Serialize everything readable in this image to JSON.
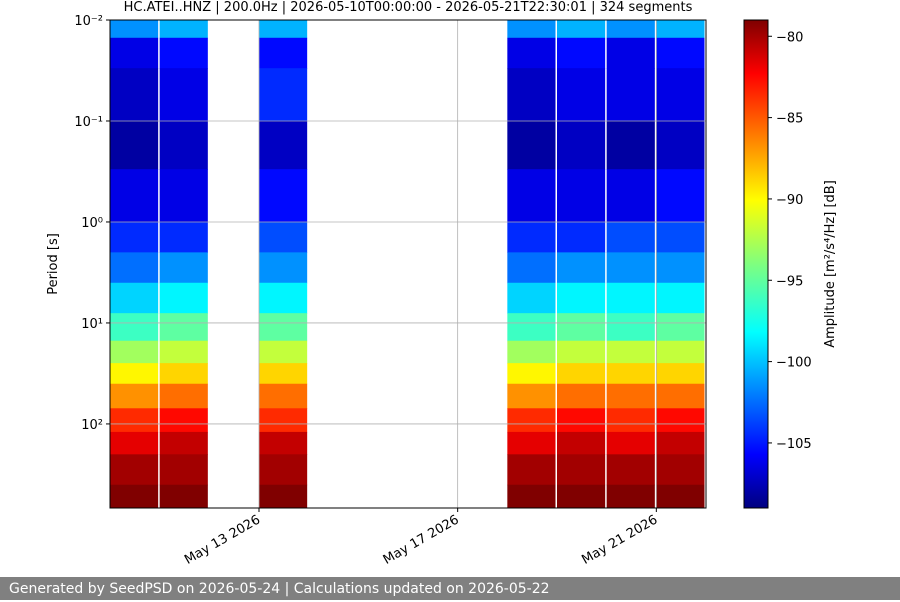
{
  "chart_data": {
    "type": "spectrogram",
    "title": "HC.ATEI..HNZ | 200.0Hz | 2026-05-10T00:00:00 - 2026-05-21T22:30:01 | 324 segments",
    "ylabel": "Period [s]",
    "colorbar_label": "Amplitude [m²/s⁴/Hz] [dB]",
    "x": [
      "2026-05-10",
      "2026-05-11",
      "2026-05-13",
      "2026-05-18",
      "2026-05-19",
      "2026-05-20",
      "2026-05-21"
    ],
    "xlim": [
      "2026-05-10",
      "2026-05-22"
    ],
    "xticks": [
      {
        "value": "2026-05-13",
        "label": "May 13 2026"
      },
      {
        "value": "2026-05-17",
        "label": "May 17 2026"
      },
      {
        "value": "2026-05-21",
        "label": "May 21 2026"
      }
    ],
    "yedges": [
      0.01,
      0.015,
      0.03,
      0.1,
      0.3,
      1,
      2,
      4,
      8,
      15,
      25,
      40,
      70,
      120,
      200,
      400,
      680
    ],
    "ylim": [
      0.01,
      680
    ],
    "ylog": true,
    "yinverted": true,
    "yticks": [
      {
        "value": 0.01,
        "label": "10⁻²"
      },
      {
        "value": 0.1,
        "label": "10⁻¹"
      },
      {
        "value": 1,
        "label": "10⁰"
      },
      {
        "value": 10,
        "label": "10¹"
      },
      {
        "value": 100,
        "label": "10²"
      }
    ],
    "z": [
      [
        -101,
        -106,
        -107,
        -108,
        -106,
        -104,
        -102,
        -99,
        -96,
        -93,
        -90,
        -87,
        -84,
        -82,
        -80,
        -79
      ],
      [
        -100,
        -105,
        -106,
        -107,
        -106,
        -104,
        -101,
        -98,
        -95,
        -92,
        -89,
        -86,
        -83,
        -81,
        -80,
        -79
      ],
      [
        -100,
        -105,
        -104,
        -107,
        -105,
        -103,
        -101,
        -98,
        -95,
        -92,
        -89,
        -86,
        -84,
        -81,
        -80,
        -79
      ],
      [
        -101,
        -106,
        -107,
        -108,
        -106,
        -104,
        -102,
        -99,
        -96,
        -93,
        -90,
        -87,
        -84,
        -82,
        -80,
        -79
      ],
      [
        -100,
        -105,
        -106,
        -107,
        -106,
        -104,
        -101,
        -98,
        -95,
        -92,
        -89,
        -86,
        -83,
        -81,
        -80,
        -79
      ],
      [
        -101,
        -106,
        -106,
        -108,
        -106,
        -103,
        -101,
        -98,
        -96,
        -92,
        -89,
        -86,
        -84,
        -82,
        -80,
        -79
      ],
      [
        -100,
        -105,
        -106,
        -107,
        -105,
        -103,
        -101,
        -98,
        -95,
        -92,
        -89,
        -86,
        -83,
        -81,
        -80,
        -79
      ]
    ],
    "clim": [
      -109,
      -79
    ],
    "colormap": "jet",
    "cticks": [
      {
        "value": -80,
        "label": "−80"
      },
      {
        "value": -85,
        "label": "−85"
      },
      {
        "value": -90,
        "label": "−90"
      },
      {
        "value": -95,
        "label": "−95"
      },
      {
        "value": -100,
        "label": "−100"
      },
      {
        "value": -105,
        "label": "−105"
      }
    ],
    "grid": true
  },
  "footer": "Generated by SeedPSD on 2026-05-24 | Calculations updated on 2026-05-22"
}
